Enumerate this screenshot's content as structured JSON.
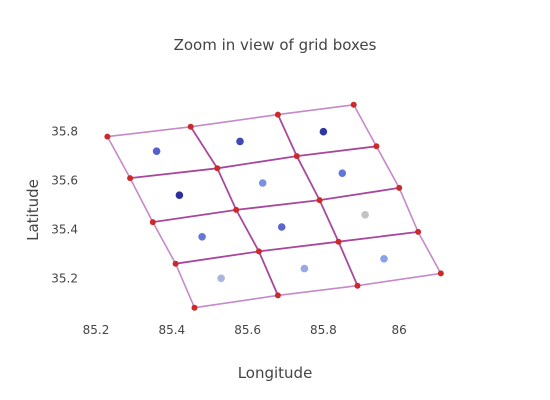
{
  "chart_data": {
    "type": "scatter",
    "title": "Zoom in view of grid boxes",
    "xlabel": "Longitude",
    "ylabel": "Latitude",
    "xlim": [
      85.2,
      86.15
    ],
    "ylim": [
      35.05,
      35.95
    ],
    "xticks": [
      "85.2",
      "85.4",
      "85.6",
      "85.8",
      "86"
    ],
    "yticks": [
      "35.2",
      "35.4",
      "35.6",
      "35.8"
    ],
    "grid_lines": [
      {
        "kind": "boundary",
        "points": [
          [
            85.23,
            35.78
          ],
          [
            85.45,
            35.82
          ],
          [
            85.68,
            35.87
          ],
          [
            85.88,
            35.91
          ]
        ]
      },
      {
        "kind": "inner",
        "points": [
          [
            85.29,
            35.61
          ],
          [
            85.52,
            35.65
          ],
          [
            85.73,
            35.7
          ],
          [
            85.94,
            35.74
          ]
        ]
      },
      {
        "kind": "inner",
        "points": [
          [
            85.35,
            35.43
          ],
          [
            85.57,
            35.48
          ],
          [
            85.79,
            35.52
          ],
          [
            86.0,
            35.57
          ]
        ]
      },
      {
        "kind": "inner",
        "points": [
          [
            85.41,
            35.26
          ],
          [
            85.63,
            35.31
          ],
          [
            85.84,
            35.35
          ],
          [
            86.05,
            35.39
          ]
        ]
      },
      {
        "kind": "boundary",
        "points": [
          [
            85.46,
            35.08
          ],
          [
            85.68,
            35.13
          ],
          [
            85.89,
            35.17
          ],
          [
            86.11,
            35.22
          ]
        ]
      },
      {
        "kind": "boundary",
        "points": [
          [
            85.23,
            35.78
          ],
          [
            85.29,
            35.61
          ],
          [
            85.35,
            35.43
          ],
          [
            85.41,
            35.26
          ],
          [
            85.46,
            35.08
          ]
        ]
      },
      {
        "kind": "inner",
        "points": [
          [
            85.45,
            35.82
          ],
          [
            85.52,
            35.65
          ],
          [
            85.57,
            35.48
          ],
          [
            85.63,
            35.31
          ],
          [
            85.68,
            35.13
          ]
        ]
      },
      {
        "kind": "inner",
        "points": [
          [
            85.68,
            35.87
          ],
          [
            85.73,
            35.7
          ],
          [
            85.79,
            35.52
          ],
          [
            85.84,
            35.35
          ],
          [
            85.89,
            35.17
          ]
        ]
      },
      {
        "kind": "boundary",
        "points": [
          [
            85.88,
            35.91
          ],
          [
            85.94,
            35.74
          ],
          [
            86.0,
            35.57
          ],
          [
            86.05,
            35.39
          ],
          [
            86.11,
            35.22
          ]
        ]
      }
    ],
    "vertices": [
      [
        85.23,
        35.78
      ],
      [
        85.45,
        35.82
      ],
      [
        85.68,
        35.87
      ],
      [
        85.88,
        35.91
      ],
      [
        85.29,
        35.61
      ],
      [
        85.52,
        35.65
      ],
      [
        85.73,
        35.7
      ],
      [
        85.94,
        35.74
      ],
      [
        85.35,
        35.43
      ],
      [
        85.57,
        35.48
      ],
      [
        85.79,
        35.52
      ],
      [
        86.0,
        35.57
      ],
      [
        85.41,
        35.26
      ],
      [
        85.63,
        35.31
      ],
      [
        85.84,
        35.35
      ],
      [
        86.05,
        35.39
      ],
      [
        85.46,
        35.08
      ],
      [
        85.68,
        35.13
      ],
      [
        85.89,
        35.17
      ],
      [
        86.11,
        35.22
      ]
    ],
    "points": [
      {
        "x": 85.36,
        "y": 35.72,
        "color": "#5560cc"
      },
      {
        "x": 85.58,
        "y": 35.76,
        "color": "#4048b8"
      },
      {
        "x": 85.8,
        "y": 35.8,
        "color": "#30369e"
      },
      {
        "x": 85.42,
        "y": 35.54,
        "color": "#2a2fa0"
      },
      {
        "x": 85.64,
        "y": 35.59,
        "color": "#7a90e0"
      },
      {
        "x": 85.85,
        "y": 35.63,
        "color": "#5f78d8"
      },
      {
        "x": 85.48,
        "y": 35.37,
        "color": "#6478d8"
      },
      {
        "x": 85.69,
        "y": 35.41,
        "color": "#5a68cc"
      },
      {
        "x": 85.91,
        "y": 35.46,
        "color": "#c2c2c2"
      },
      {
        "x": 85.53,
        "y": 35.2,
        "color": "#aab4e0"
      },
      {
        "x": 85.75,
        "y": 35.24,
        "color": "#98a8e6"
      },
      {
        "x": 85.96,
        "y": 35.28,
        "color": "#8aa0ea"
      }
    ],
    "colors": {
      "boundary_line": "#c58ac8",
      "inner_line": "#a8489c",
      "vertex": "#cc2a2a"
    }
  }
}
